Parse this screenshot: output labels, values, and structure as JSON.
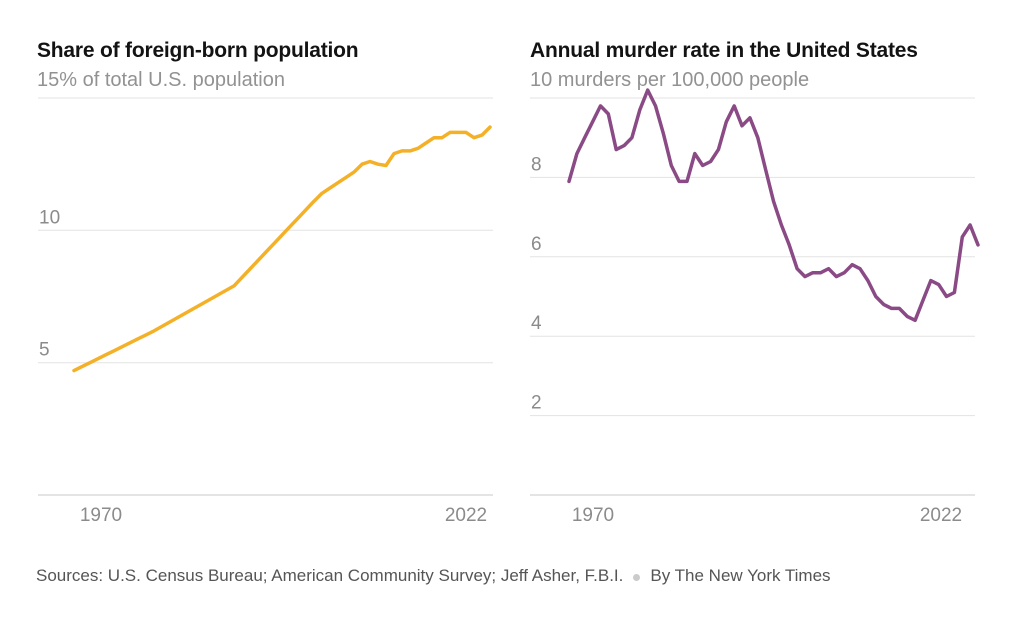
{
  "chart_data": [
    {
      "id": "foreign-born-share",
      "type": "line",
      "title": "Share of foreign-born population",
      "subtitle": "15% of total U.S. population",
      "line_color": "#f4b128",
      "x_range": [
        1970,
        2022
      ],
      "ylim": [
        0,
        15
      ],
      "y_top_value": 15,
      "gridline_values": [
        5,
        10,
        15
      ],
      "y_tick_values": [
        5,
        10
      ],
      "y_tick_labels": [
        "5",
        "10"
      ],
      "x_ticks": [
        "1970",
        "2022"
      ],
      "grid": "horizontal-only",
      "legend": "none",
      "series": [
        {
          "name": "Foreign-born share of total U.S. population (%)",
          "points": [
            [
              1970,
              4.7
            ],
            [
              1971,
              4.85
            ],
            [
              1972,
              5.0
            ],
            [
              1973,
              5.15
            ],
            [
              1974,
              5.3
            ],
            [
              1975,
              5.45
            ],
            [
              1976,
              5.6
            ],
            [
              1977,
              5.75
            ],
            [
              1978,
              5.9
            ],
            [
              1979,
              6.05
            ],
            [
              1980,
              6.2
            ],
            [
              1981,
              6.37
            ],
            [
              1982,
              6.54
            ],
            [
              1983,
              6.71
            ],
            [
              1984,
              6.88
            ],
            [
              1985,
              7.05
            ],
            [
              1986,
              7.22
            ],
            [
              1987,
              7.39
            ],
            [
              1988,
              7.56
            ],
            [
              1989,
              7.73
            ],
            [
              1990,
              7.9
            ],
            [
              1991,
              8.22
            ],
            [
              1992,
              8.54
            ],
            [
              1993,
              8.86
            ],
            [
              1994,
              9.18
            ],
            [
              1995,
              9.5
            ],
            [
              1996,
              9.82
            ],
            [
              1997,
              10.14
            ],
            [
              1998,
              10.46
            ],
            [
              1999,
              10.78
            ],
            [
              2000,
              11.1
            ],
            [
              2001,
              11.4
            ],
            [
              2002,
              11.6
            ],
            [
              2003,
              11.8
            ],
            [
              2004,
              12.0
            ],
            [
              2005,
              12.2
            ],
            [
              2006,
              12.5
            ],
            [
              2007,
              12.6
            ],
            [
              2008,
              12.5
            ],
            [
              2009,
              12.45
            ],
            [
              2010,
              12.9
            ],
            [
              2011,
              13.0
            ],
            [
              2012,
              13.0
            ],
            [
              2013,
              13.1
            ],
            [
              2014,
              13.3
            ],
            [
              2015,
              13.5
            ],
            [
              2016,
              13.5
            ],
            [
              2017,
              13.7
            ],
            [
              2018,
              13.7
            ],
            [
              2019,
              13.7
            ],
            [
              2020,
              13.5
            ],
            [
              2021,
              13.6
            ],
            [
              2022,
              13.9
            ]
          ]
        }
      ]
    },
    {
      "id": "murder-rate",
      "type": "line",
      "title": "Annual murder rate in the United States",
      "subtitle": "10 murders per 100,000 people",
      "line_color": "#8a4a85",
      "x_range": [
        1970,
        2022
      ],
      "ylim": [
        0,
        10
      ],
      "y_top_value": 10,
      "gridline_values": [
        2,
        4,
        6,
        8,
        10
      ],
      "y_tick_values": [
        2,
        4,
        6,
        8
      ],
      "y_tick_labels": [
        "2",
        "4",
        "6",
        "8"
      ],
      "x_ticks": [
        "1970",
        "2022"
      ],
      "grid": "horizontal-only",
      "legend": "none",
      "series": [
        {
          "name": "Murders per 100,000 people",
          "points": [
            [
              1970,
              7.9
            ],
            [
              1971,
              8.6
            ],
            [
              1972,
              9.0
            ],
            [
              1973,
              9.4
            ],
            [
              1974,
              9.8
            ],
            [
              1975,
              9.6
            ],
            [
              1976,
              8.7
            ],
            [
              1977,
              8.8
            ],
            [
              1978,
              9.0
            ],
            [
              1979,
              9.7
            ],
            [
              1980,
              10.2
            ],
            [
              1981,
              9.8
            ],
            [
              1982,
              9.1
            ],
            [
              1983,
              8.3
            ],
            [
              1984,
              7.9
            ],
            [
              1985,
              7.9
            ],
            [
              1986,
              8.6
            ],
            [
              1987,
              8.3
            ],
            [
              1988,
              8.4
            ],
            [
              1989,
              8.7
            ],
            [
              1990,
              9.4
            ],
            [
              1991,
              9.8
            ],
            [
              1992,
              9.3
            ],
            [
              1993,
              9.5
            ],
            [
              1994,
              9.0
            ],
            [
              1995,
              8.2
            ],
            [
              1996,
              7.4
            ],
            [
              1997,
              6.8
            ],
            [
              1998,
              6.3
            ],
            [
              1999,
              5.7
            ],
            [
              2000,
              5.5
            ],
            [
              2001,
              5.6
            ],
            [
              2002,
              5.6
            ],
            [
              2003,
              5.7
            ],
            [
              2004,
              5.5
            ],
            [
              2005,
              5.6
            ],
            [
              2006,
              5.8
            ],
            [
              2007,
              5.7
            ],
            [
              2008,
              5.4
            ],
            [
              2009,
              5.0
            ],
            [
              2010,
              4.8
            ],
            [
              2011,
              4.7
            ],
            [
              2012,
              4.7
            ],
            [
              2013,
              4.5
            ],
            [
              2014,
              4.4
            ],
            [
              2015,
              4.9
            ],
            [
              2016,
              5.4
            ],
            [
              2017,
              5.3
            ],
            [
              2018,
              5.0
            ],
            [
              2019,
              5.1
            ],
            [
              2020,
              6.5
            ],
            [
              2021,
              6.8
            ],
            [
              2022,
              6.3
            ]
          ]
        }
      ]
    }
  ],
  "footer": {
    "sources": "Sources: U.S. Census Bureau; American Community Survey; Jeff Asher, F.B.I.",
    "byline": "By The New York Times"
  },
  "colors": {
    "background": "#ffffff",
    "title_text": "#131313",
    "subtitle_text": "#929292",
    "axis_text": "#8b8b8b",
    "gridline": "#e3e3e3",
    "baseline": "#c9c9c9",
    "footer_text": "#555555",
    "separator_dot": "#cbcbcb",
    "left_line": "#f4b128",
    "right_line": "#8a4a85"
  }
}
